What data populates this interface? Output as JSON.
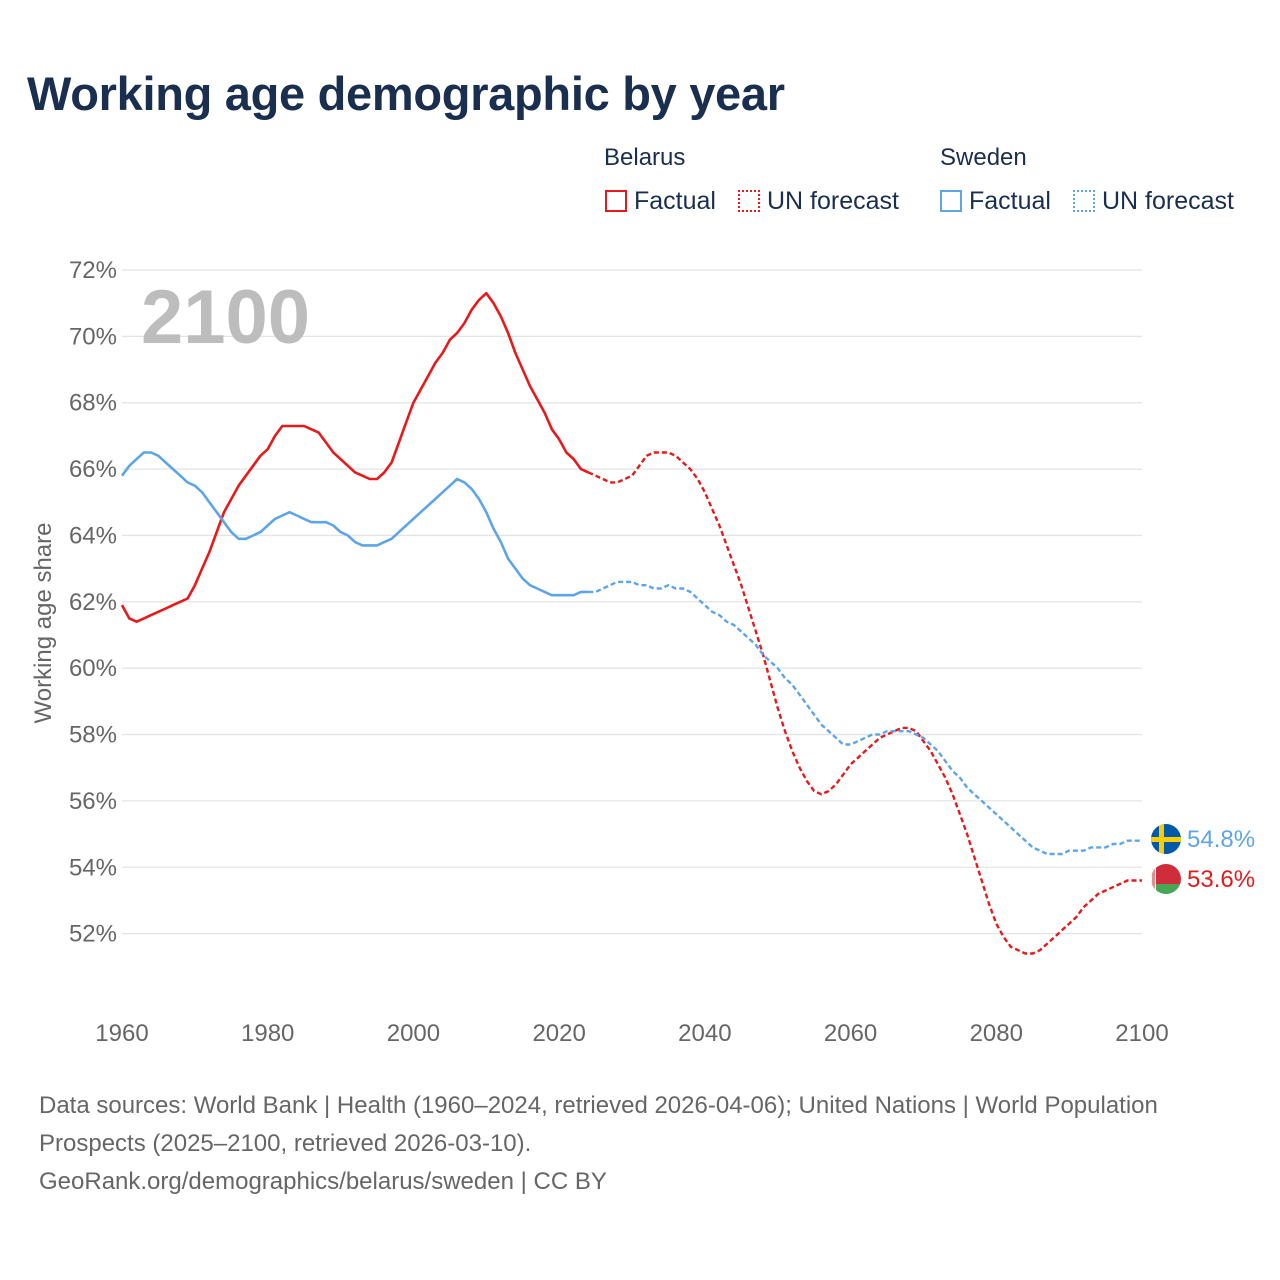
{
  "title": "Working age demographic by year",
  "legend": {
    "groups": [
      {
        "name": "Belarus",
        "color": "#e8191b",
        "factual_label": "Factual",
        "forecast_label": "UN forecast"
      },
      {
        "name": "Sweden",
        "color": "#5ea5e8",
        "factual_label": "Factual",
        "forecast_label": "UN forecast"
      }
    ]
  },
  "year_watermark": "2100",
  "end_labels": {
    "belarus": "53.6%",
    "sweden": "54.8%"
  },
  "footer": {
    "sources": "Data sources: World Bank | Health (1960–2024, retrieved 2026-04-06); United Nations | World Population Prospects (2025–2100, retrieved 2026-03-10).",
    "credit": "GeoRank.org/demographics/belarus/sweden | CC BY"
  },
  "chart_data": {
    "type": "line",
    "title": "Working age demographic by year",
    "xlabel": "",
    "ylabel": "Working age share",
    "xlim": [
      1960,
      2100
    ],
    "ylim": [
      50,
      72
    ],
    "y_ticks": [
      52,
      54,
      56,
      58,
      60,
      62,
      64,
      66,
      68,
      70,
      72
    ],
    "y_tick_labels": [
      "52%",
      "54%",
      "56%",
      "58%",
      "60%",
      "62%",
      "64%",
      "66%",
      "68%",
      "70%",
      "72%"
    ],
    "x_ticks": [
      1960,
      1980,
      2000,
      2020,
      2040,
      2060,
      2080,
      2100
    ],
    "x_tick_labels": [
      "1960",
      "1980",
      "2000",
      "2020",
      "2040",
      "2060",
      "2080",
      "2100"
    ],
    "grid": true,
    "series": [
      {
        "name": "Belarus",
        "segment": "Factual",
        "color": "#e8191b",
        "style": "solid",
        "x": [
          1960,
          1961,
          1962,
          1963,
          1964,
          1965,
          1966,
          1967,
          1968,
          1969,
          1970,
          1971,
          1972,
          1973,
          1974,
          1975,
          1976,
          1977,
          1978,
          1979,
          1980,
          1981,
          1982,
          1983,
          1984,
          1985,
          1986,
          1987,
          1988,
          1989,
          1990,
          1991,
          1992,
          1993,
          1994,
          1995,
          1996,
          1997,
          1998,
          1999,
          2000,
          2001,
          2002,
          2003,
          2004,
          2005,
          2006,
          2007,
          2008,
          2009,
          2010,
          2011,
          2012,
          2013,
          2014,
          2015,
          2016,
          2017,
          2018,
          2019,
          2020,
          2021,
          2022,
          2023,
          2024
        ],
        "y": [
          61.9,
          61.5,
          61.4,
          61.5,
          61.6,
          61.7,
          61.8,
          61.9,
          62.0,
          62.1,
          62.5,
          63.0,
          63.5,
          64.1,
          64.7,
          65.1,
          65.5,
          65.8,
          66.1,
          66.4,
          66.6,
          67.0,
          67.3,
          67.3,
          67.3,
          67.3,
          67.2,
          67.1,
          66.8,
          66.5,
          66.3,
          66.1,
          65.9,
          65.8,
          65.7,
          65.7,
          65.9,
          66.2,
          66.8,
          67.4,
          68.0,
          68.4,
          68.8,
          69.2,
          69.5,
          69.9,
          70.1,
          70.4,
          70.8,
          71.1,
          71.3,
          71.0,
          70.6,
          70.1,
          69.5,
          69.0,
          68.5,
          68.1,
          67.7,
          67.2,
          66.9,
          66.5,
          66.3,
          66.0,
          65.9
        ]
      },
      {
        "name": "Belarus",
        "segment": "UN forecast",
        "color": "#e8191b",
        "style": "dotted",
        "x": [
          2024,
          2025,
          2026,
          2027,
          2028,
          2029,
          2030,
          2031,
          2032,
          2033,
          2034,
          2035,
          2036,
          2037,
          2038,
          2039,
          2040,
          2041,
          2042,
          2043,
          2044,
          2045,
          2046,
          2047,
          2048,
          2049,
          2050,
          2051,
          2052,
          2053,
          2054,
          2055,
          2056,
          2057,
          2058,
          2059,
          2060,
          2061,
          2062,
          2063,
          2064,
          2065,
          2066,
          2067,
          2068,
          2069,
          2070,
          2071,
          2072,
          2073,
          2074,
          2075,
          2076,
          2077,
          2078,
          2079,
          2080,
          2081,
          2082,
          2083,
          2084,
          2085,
          2086,
          2087,
          2088,
          2089,
          2090,
          2091,
          2092,
          2093,
          2094,
          2095,
          2096,
          2097,
          2098,
          2099,
          2100
        ],
        "y": [
          65.9,
          65.8,
          65.7,
          65.6,
          65.6,
          65.7,
          65.8,
          66.1,
          66.4,
          66.5,
          66.5,
          66.5,
          66.4,
          66.2,
          66.0,
          65.7,
          65.3,
          64.8,
          64.3,
          63.7,
          63.1,
          62.5,
          61.8,
          61.1,
          60.4,
          59.6,
          58.8,
          58.1,
          57.5,
          57.0,
          56.6,
          56.3,
          56.2,
          56.3,
          56.5,
          56.8,
          57.1,
          57.3,
          57.5,
          57.7,
          57.9,
          58.0,
          58.1,
          58.2,
          58.2,
          58.1,
          57.8,
          57.5,
          57.1,
          56.7,
          56.2,
          55.6,
          55.0,
          54.3,
          53.6,
          52.9,
          52.3,
          51.9,
          51.6,
          51.5,
          51.4,
          51.4,
          51.5,
          51.7,
          51.9,
          52.1,
          52.3,
          52.5,
          52.8,
          53.0,
          53.2,
          53.3,
          53.4,
          53.5,
          53.6,
          53.6,
          53.6
        ]
      },
      {
        "name": "Sweden",
        "segment": "Factual",
        "color": "#5ea5e8",
        "style": "solid",
        "x": [
          1960,
          1961,
          1962,
          1963,
          1964,
          1965,
          1966,
          1967,
          1968,
          1969,
          1970,
          1971,
          1972,
          1973,
          1974,
          1975,
          1976,
          1977,
          1978,
          1979,
          1980,
          1981,
          1982,
          1983,
          1984,
          1985,
          1986,
          1987,
          1988,
          1989,
          1990,
          1991,
          1992,
          1993,
          1994,
          1995,
          1996,
          1997,
          1998,
          1999,
          2000,
          2001,
          2002,
          2003,
          2004,
          2005,
          2006,
          2007,
          2008,
          2009,
          2010,
          2011,
          2012,
          2013,
          2014,
          2015,
          2016,
          2017,
          2018,
          2019,
          2020,
          2021,
          2022,
          2023,
          2024
        ],
        "y": [
          65.8,
          66.1,
          66.3,
          66.5,
          66.5,
          66.4,
          66.2,
          66.0,
          65.8,
          65.6,
          65.5,
          65.3,
          65.0,
          64.7,
          64.4,
          64.1,
          63.9,
          63.9,
          64.0,
          64.1,
          64.3,
          64.5,
          64.6,
          64.7,
          64.6,
          64.5,
          64.4,
          64.4,
          64.4,
          64.3,
          64.1,
          64.0,
          63.8,
          63.7,
          63.7,
          63.7,
          63.8,
          63.9,
          64.1,
          64.3,
          64.5,
          64.7,
          64.9,
          65.1,
          65.3,
          65.5,
          65.7,
          65.6,
          65.4,
          65.1,
          64.7,
          64.2,
          63.8,
          63.3,
          63.0,
          62.7,
          62.5,
          62.4,
          62.3,
          62.2,
          62.2,
          62.2,
          62.2,
          62.3,
          62.3
        ]
      },
      {
        "name": "Sweden",
        "segment": "UN forecast",
        "color": "#5ea5e8",
        "style": "dotted",
        "x": [
          2024,
          2025,
          2026,
          2027,
          2028,
          2029,
          2030,
          2031,
          2032,
          2033,
          2034,
          2035,
          2036,
          2037,
          2038,
          2039,
          2040,
          2041,
          2042,
          2043,
          2044,
          2045,
          2046,
          2047,
          2048,
          2049,
          2050,
          2051,
          2052,
          2053,
          2054,
          2055,
          2056,
          2057,
          2058,
          2059,
          2060,
          2061,
          2062,
          2063,
          2064,
          2065,
          2066,
          2067,
          2068,
          2069,
          2070,
          2071,
          2072,
          2073,
          2074,
          2075,
          2076,
          2077,
          2078,
          2079,
          2080,
          2081,
          2082,
          2083,
          2084,
          2085,
          2086,
          2087,
          2088,
          2089,
          2090,
          2091,
          2092,
          2093,
          2094,
          2095,
          2096,
          2097,
          2098,
          2099,
          2100
        ],
        "y": [
          62.3,
          62.3,
          62.4,
          62.5,
          62.6,
          62.6,
          62.6,
          62.5,
          62.5,
          62.4,
          62.4,
          62.5,
          62.4,
          62.4,
          62.3,
          62.1,
          61.9,
          61.7,
          61.6,
          61.4,
          61.3,
          61.1,
          60.9,
          60.7,
          60.4,
          60.2,
          60.0,
          59.7,
          59.5,
          59.2,
          58.9,
          58.6,
          58.3,
          58.1,
          57.9,
          57.7,
          57.7,
          57.8,
          57.9,
          58.0,
          58.0,
          58.1,
          58.1,
          58.1,
          58.1,
          58.0,
          57.9,
          57.7,
          57.5,
          57.2,
          56.9,
          56.7,
          56.4,
          56.2,
          56.0,
          55.8,
          55.6,
          55.4,
          55.2,
          55.0,
          54.8,
          54.6,
          54.5,
          54.4,
          54.4,
          54.4,
          54.5,
          54.5,
          54.5,
          54.6,
          54.6,
          54.6,
          54.7,
          54.7,
          54.8,
          54.8,
          54.8
        ]
      }
    ]
  }
}
